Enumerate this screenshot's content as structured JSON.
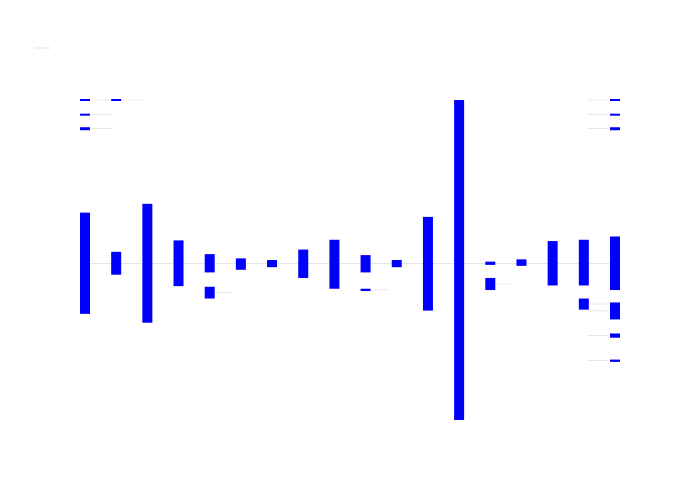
{
  "chart_data": {
    "type": "bar",
    "title": "",
    "xlabel": "",
    "ylabel": "",
    "grid": false,
    "legend": "none",
    "bar_color": "#0000ff",
    "connector_color": "#cccccc",
    "annotation_color": "#d9d9d9",
    "ylim": [
      -4.8,
      5.0
    ],
    "bars": [
      {
        "top": 1.55,
        "bottom": -1.55
      },
      {
        "top": 0.35,
        "bottom": -0.35
      },
      {
        "top": 1.82,
        "bottom": -1.82
      },
      {
        "top": 0.7,
        "bottom": -0.7
      },
      {
        "top": 0.28,
        "bottom": -0.28
      },
      {
        "top": 0.15,
        "bottom": -0.2
      },
      {
        "top": 0.1,
        "bottom": -0.12
      },
      {
        "top": 0.42,
        "bottom": -0.45
      },
      {
        "top": 0.72,
        "bottom": -0.78
      },
      {
        "top": 0.25,
        "bottom": -0.28
      },
      {
        "top": 0.1,
        "bottom": -0.12
      },
      {
        "top": 1.42,
        "bottom": -1.45
      },
      {
        "top": 5.0,
        "bottom": -4.8
      },
      {
        "top": 0.05,
        "bottom": -0.05
      },
      {
        "top": 0.12,
        "bottom": -0.08
      },
      {
        "top": 0.68,
        "bottom": -0.68
      },
      {
        "top": 0.72,
        "bottom": -0.68
      },
      {
        "top": 0.82,
        "bottom": -0.82
      }
    ],
    "extra_bars": [
      {
        "index": 4,
        "top": -0.72,
        "bottom": -1.08
      },
      {
        "index": 9,
        "top": -0.78,
        "bottom": -0.85
      },
      {
        "index": 13,
        "top": -0.45,
        "bottom": -0.82
      },
      {
        "index": 16,
        "top": -1.08,
        "bottom": -1.42
      },
      {
        "index": 17,
        "top": -1.2,
        "bottom": -1.72
      },
      {
        "index": 17,
        "top": -2.15,
        "bottom": -2.28
      },
      {
        "index": 17,
        "top": -2.95,
        "bottom": -3.02
      }
    ],
    "legend_marks": [
      {
        "index": 0,
        "value": 5.0
      },
      {
        "index": 1,
        "value": 5.0
      },
      {
        "index": 0,
        "value": 4.55
      },
      {
        "index": 0,
        "value": 4.12
      },
      {
        "index": 17,
        "value": 5.0
      },
      {
        "index": 17,
        "value": 4.55
      },
      {
        "index": 17,
        "value": 4.12
      }
    ]
  }
}
